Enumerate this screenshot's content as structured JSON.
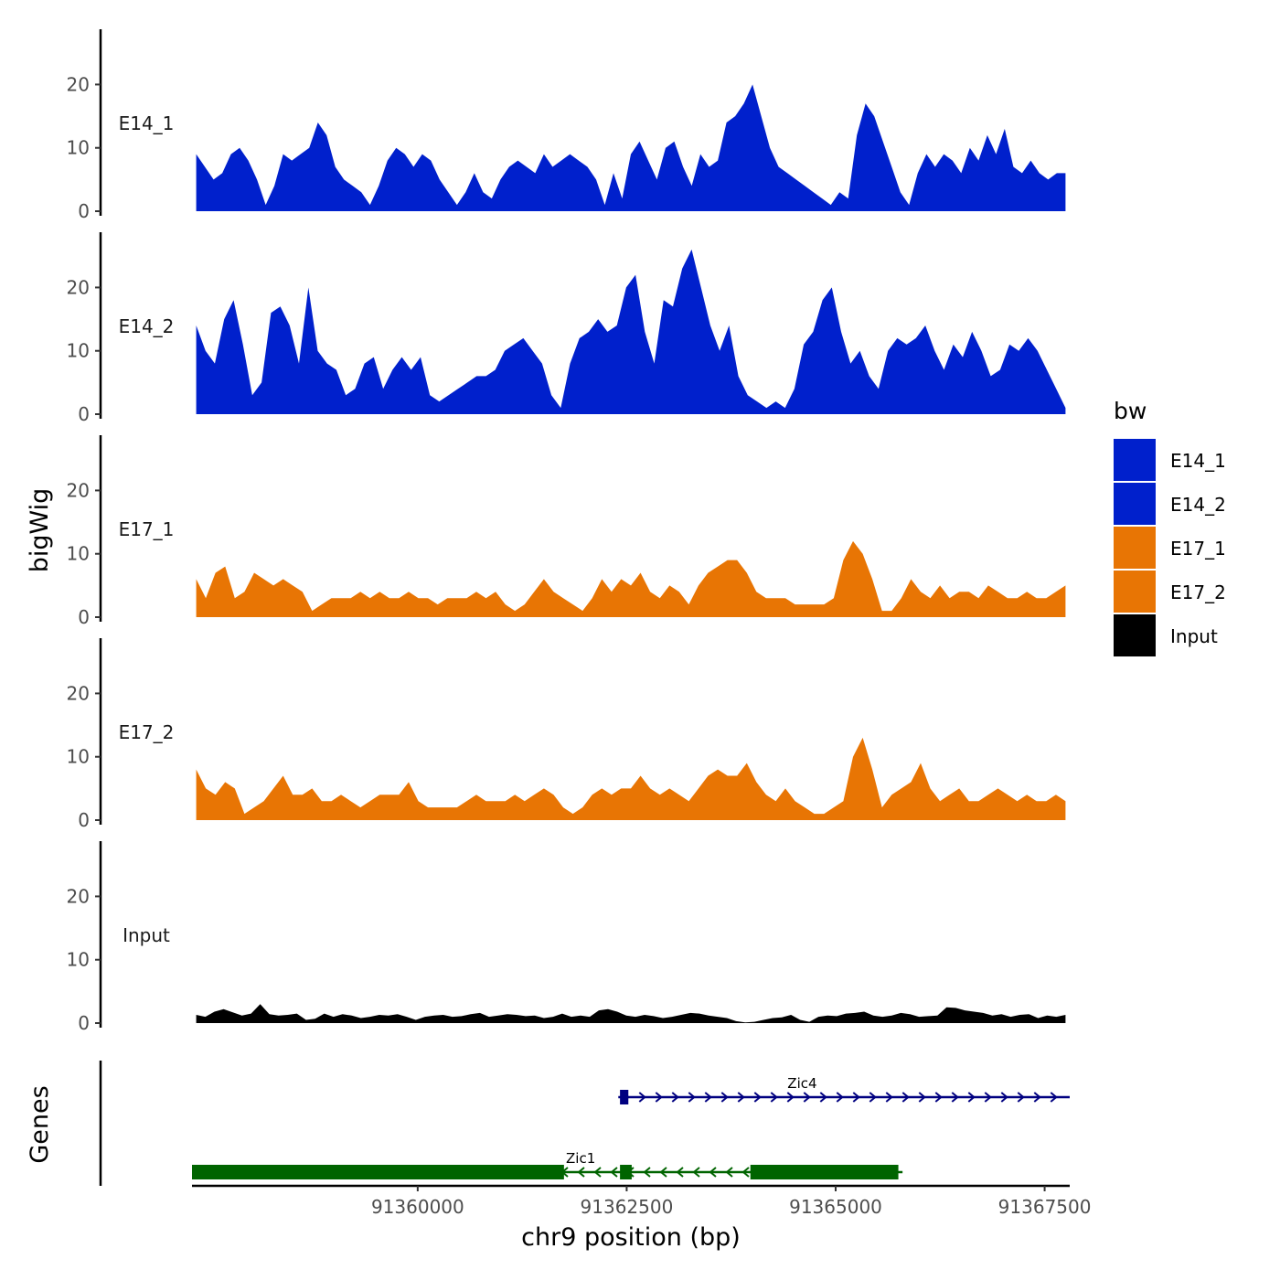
{
  "chart_data": {
    "type": "area",
    "ylabel": "bigWig",
    "xlabel": "chr9 position (bp)",
    "xlim": [
      91357300,
      91367800
    ],
    "ylim": [
      0,
      28
    ],
    "y_ticks": [
      0,
      10,
      20
    ],
    "x_ticks": [
      91360000,
      91362500,
      91365000,
      91367500
    ],
    "x_tick_labels": [
      "91360000",
      "91362500",
      "91365000",
      "91367500"
    ],
    "genes_label": "Genes",
    "legend": {
      "title": "bw",
      "entries": [
        {
          "label": "E14_1",
          "color": "#0020CC"
        },
        {
          "label": "E14_2",
          "color": "#0020CC"
        },
        {
          "label": "E17_1",
          "color": "#E87504"
        },
        {
          "label": "E17_2",
          "color": "#E87504"
        },
        {
          "label": "Input",
          "color": "#000000"
        }
      ]
    },
    "series": [
      {
        "name": "E14_1",
        "color": "#0020CC",
        "x_start": 91357350,
        "x_end": 91367750,
        "values": [
          9,
          7,
          5,
          6,
          9,
          10,
          8,
          5,
          1,
          4,
          9,
          8,
          9,
          10,
          14,
          12,
          7,
          5,
          4,
          3,
          1,
          4,
          8,
          10,
          9,
          7,
          9,
          8,
          5,
          3,
          1,
          3,
          6,
          3,
          2,
          5,
          7,
          8,
          7,
          6,
          9,
          7,
          8,
          9,
          8,
          7,
          5,
          1,
          6,
          2,
          9,
          11,
          8,
          5,
          10,
          11,
          7,
          4,
          9,
          7,
          8,
          14,
          15,
          17,
          20,
          15,
          10,
          7,
          6,
          5,
          4,
          3,
          2,
          1,
          3,
          2,
          12,
          17,
          15,
          11,
          7,
          3,
          1,
          6,
          9,
          7,
          9,
          8,
          6,
          10,
          8,
          12,
          9,
          13,
          7,
          6,
          8,
          6,
          5,
          6,
          6
        ]
      },
      {
        "name": "E14_2",
        "color": "#0020CC",
        "x_start": 91357350,
        "x_end": 91367750,
        "values": [
          14,
          10,
          8,
          15,
          18,
          11,
          3,
          5,
          16,
          17,
          14,
          8,
          20,
          10,
          8,
          7,
          3,
          4,
          8,
          9,
          4,
          7,
          9,
          7,
          9,
          3,
          2,
          3,
          4,
          5,
          6,
          6,
          7,
          10,
          11,
          12,
          10,
          8,
          3,
          1,
          8,
          12,
          13,
          15,
          13,
          14,
          20,
          22,
          13,
          8,
          18,
          17,
          23,
          26,
          20,
          14,
          10,
          14,
          6,
          3,
          2,
          1,
          2,
          1,
          4,
          11,
          13,
          18,
          20,
          13,
          8,
          10,
          6,
          4,
          10,
          12,
          11,
          12,
          14,
          10,
          7,
          11,
          9,
          13,
          10,
          6,
          7,
          11,
          10,
          12,
          10,
          7,
          4,
          1
        ]
      },
      {
        "name": "E17_1",
        "color": "#E87504",
        "x_start": 91357350,
        "x_end": 91367750,
        "values": [
          6,
          3,
          7,
          8,
          3,
          4,
          7,
          6,
          5,
          6,
          5,
          4,
          1,
          2,
          3,
          3,
          3,
          4,
          3,
          4,
          3,
          3,
          4,
          3,
          3,
          2,
          3,
          3,
          3,
          4,
          3,
          4,
          2,
          1,
          2,
          4,
          6,
          4,
          3,
          2,
          1,
          3,
          6,
          4,
          6,
          5,
          7,
          4,
          3,
          5,
          4,
          2,
          5,
          7,
          8,
          9,
          9,
          7,
          4,
          3,
          3,
          3,
          2,
          2,
          2,
          2,
          3,
          9,
          12,
          10,
          6,
          1,
          1,
          3,
          6,
          4,
          3,
          5,
          3,
          4,
          4,
          3,
          5,
          4,
          3,
          3,
          4,
          3,
          3,
          4,
          5
        ]
      },
      {
        "name": "E17_2",
        "color": "#E87504",
        "x_start": 91357350,
        "x_end": 91367750,
        "values": [
          8,
          5,
          4,
          6,
          5,
          1,
          2,
          3,
          5,
          7,
          4,
          4,
          5,
          3,
          3,
          4,
          3,
          2,
          3,
          4,
          4,
          4,
          6,
          3,
          2,
          2,
          2,
          2,
          3,
          4,
          3,
          3,
          3,
          4,
          3,
          4,
          5,
          4,
          2,
          1,
          2,
          4,
          5,
          4,
          5,
          5,
          7,
          5,
          4,
          5,
          4,
          3,
          5,
          7,
          8,
          7,
          7,
          9,
          6,
          4,
          3,
          5,
          3,
          2,
          1,
          1,
          2,
          3,
          10,
          13,
          8,
          2,
          4,
          5,
          6,
          9,
          5,
          3,
          4,
          5,
          3,
          3,
          4,
          5,
          4,
          3,
          4,
          3,
          3,
          4,
          3
        ]
      },
      {
        "name": "Input",
        "color": "#000000",
        "x_start": 91357350,
        "x_end": 91367750,
        "values": [
          1.3,
          1.0,
          1.8,
          2.2,
          1.7,
          1.2,
          1.5,
          3.0,
          1.4,
          1.2,
          1.3,
          1.5,
          0.5,
          0.7,
          1.5,
          1.0,
          1.4,
          1.2,
          0.8,
          1.0,
          1.3,
          1.2,
          1.4,
          1.0,
          0.5,
          1.0,
          1.2,
          1.3,
          1.0,
          1.1,
          1.4,
          1.6,
          1.0,
          1.2,
          1.4,
          1.3,
          1.1,
          1.2,
          0.8,
          1.0,
          1.5,
          1.0,
          1.2,
          1.0,
          2.0,
          2.2,
          1.8,
          1.2,
          1.0,
          1.3,
          1.1,
          0.8,
          1.0,
          1.3,
          1.6,
          1.5,
          1.2,
          1.0,
          0.8,
          0.3,
          0.1,
          0.2,
          0.5,
          0.8,
          0.9,
          1.3,
          0.5,
          0.2,
          1.0,
          1.2,
          1.1,
          1.5,
          1.6,
          1.8,
          1.2,
          1.0,
          1.2,
          1.6,
          1.4,
          1.0,
          1.1,
          1.2,
          2.5,
          2.4,
          2.0,
          1.8,
          1.6,
          1.2,
          1.4,
          1.0,
          1.3,
          1.4,
          0.8,
          1.2,
          1.0,
          1.3
        ]
      }
    ],
    "genes": [
      {
        "name": "Zic4",
        "strand": "+",
        "color": "#000080",
        "start": 91362400,
        "end": 91367800,
        "exons": [
          [
            91362420,
            91362520
          ]
        ]
      },
      {
        "name": "Zic1",
        "strand": "-",
        "color": "#006400",
        "start": 91357300,
        "end": 91365800,
        "exons": [
          [
            91357300,
            91361750
          ],
          [
            91362420,
            91362560
          ],
          [
            91363980,
            91365750
          ]
        ]
      }
    ]
  }
}
